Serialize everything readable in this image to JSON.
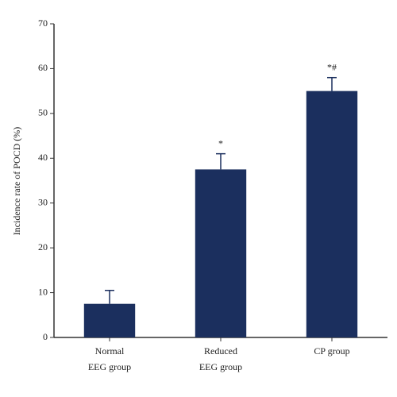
{
  "chart_data": {
    "type": "bar",
    "y_label": "Incidence rate of POCD (%)",
    "categories": [
      [
        "Normal",
        "EEG group"
      ],
      [
        "Reduced",
        "EEG group"
      ],
      [
        "CP group"
      ]
    ],
    "values": [
      7.5,
      37.5,
      55
    ],
    "errors": [
      3,
      3.5,
      3
    ],
    "annotations": [
      null,
      "*",
      "*#"
    ],
    "color": "#1b2f5e",
    "ylim": [
      0,
      70
    ],
    "yticks": [
      0,
      10,
      20,
      30,
      40,
      50,
      60,
      70
    ],
    "grid": false
  }
}
